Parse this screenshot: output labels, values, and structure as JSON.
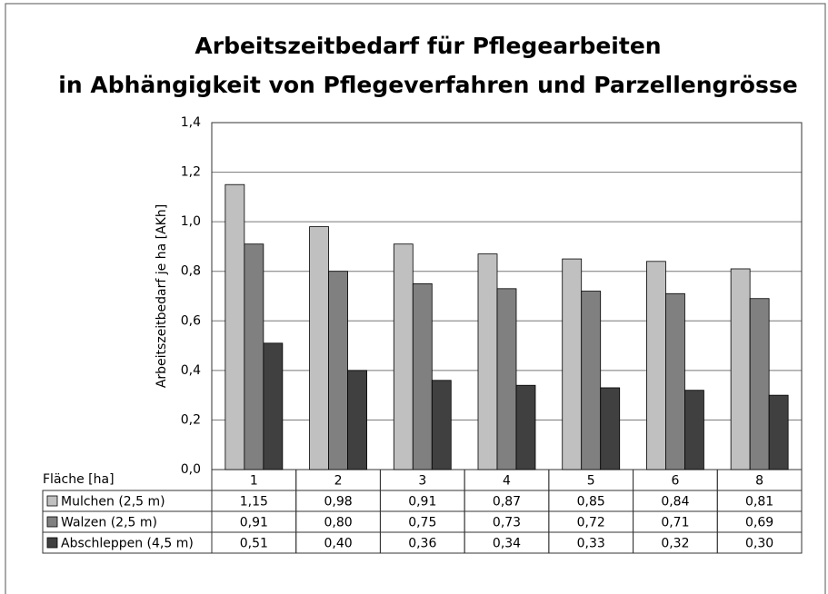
{
  "chart_data": {
    "type": "bar",
    "title": [
      "Arbeitszeitbedarf für Pflegearbeiten",
      "in Abhängigkeit von Pflegeverfahren und Parzellengrösse"
    ],
    "y_label": "Arbeitszeitbedarf je ha [AKh]",
    "x_label": "Fläche [ha]",
    "categories": [
      "1",
      "2",
      "3",
      "4",
      "5",
      "6",
      "8"
    ],
    "series": [
      {
        "name": "Mulchen (2,5 m)",
        "color": "#c0c0c0",
        "values": [
          1.15,
          0.98,
          0.91,
          0.87,
          0.85,
          0.84,
          0.81
        ],
        "value_labels": [
          "1,15",
          "0,98",
          "0,91",
          "0,87",
          "0,85",
          "0,84",
          "0,81"
        ]
      },
      {
        "name": "Walzen (2,5 m)",
        "color": "#808080",
        "values": [
          0.91,
          0.8,
          0.75,
          0.73,
          0.72,
          0.71,
          0.69
        ],
        "value_labels": [
          "0,91",
          "0,80",
          "0,75",
          "0,73",
          "0,72",
          "0,71",
          "0,69"
        ]
      },
      {
        "name": "Abschleppen (4,5 m)",
        "color": "#404040",
        "values": [
          0.51,
          0.4,
          0.36,
          0.34,
          0.33,
          0.32,
          0.3
        ],
        "value_labels": [
          "0,51",
          "0,40",
          "0,36",
          "0,34",
          "0,33",
          "0,32",
          "0,30"
        ]
      }
    ],
    "ylim": [
      0,
      1.4
    ],
    "yticks": [
      {
        "value": 0,
        "label": "0,0"
      },
      {
        "value": 0.2,
        "label": "0,2"
      },
      {
        "value": 0.4,
        "label": "0,4"
      },
      {
        "value": 0.6,
        "label": "0,6"
      },
      {
        "value": 0.8,
        "label": "0,8"
      },
      {
        "value": 1.0,
        "label": "1,0"
      },
      {
        "value": 1.2,
        "label": "1,2"
      },
      {
        "value": 1.4,
        "label": "1,4"
      }
    ],
    "grid": true
  }
}
